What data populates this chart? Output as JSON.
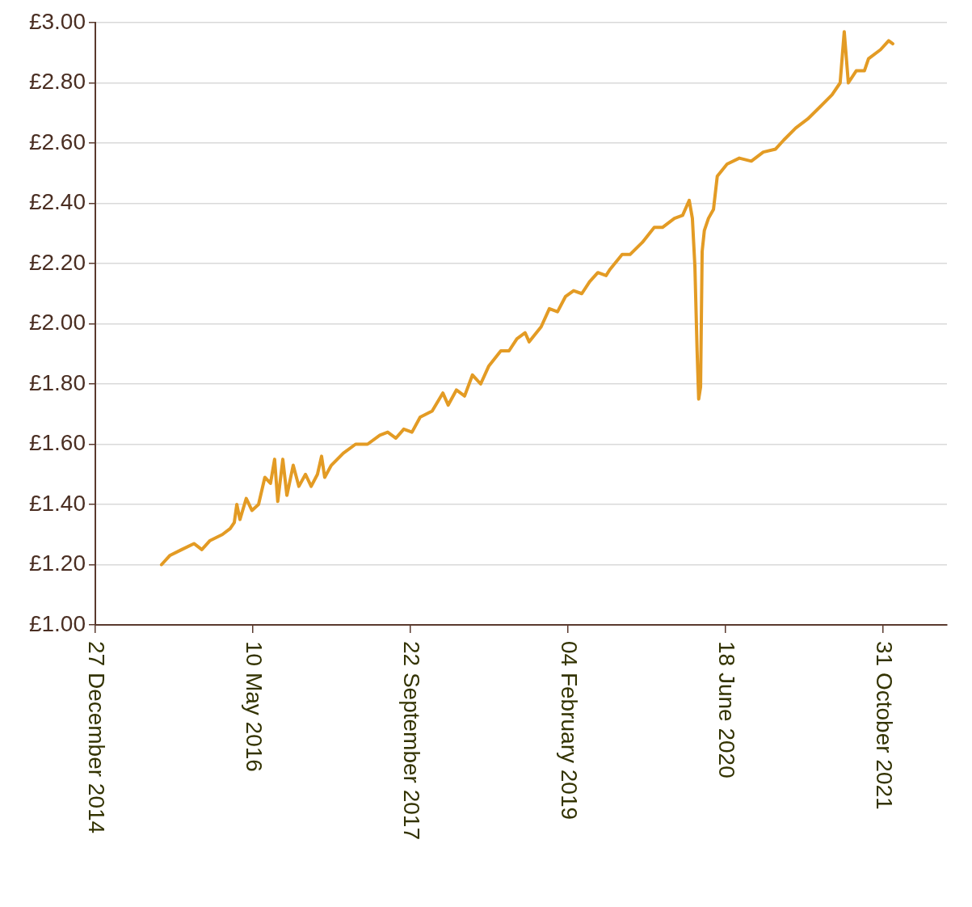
{
  "chart_data": {
    "type": "line",
    "grid": "y",
    "marker": "none",
    "line_style": "solid",
    "legend": false,
    "xlim": [
      "2014-12-27",
      "2022-05-22"
    ],
    "xticks": [
      {
        "value": "2014-12-27",
        "label": "27 December 2014"
      },
      {
        "value": "2016-05-10",
        "label": "10 May 2016"
      },
      {
        "value": "2017-09-22",
        "label": "22 September 2017"
      },
      {
        "value": "2019-02-04",
        "label": "04 February 2019"
      },
      {
        "value": "2020-06-18",
        "label": "18 June 2020"
      },
      {
        "value": "2021-10-31",
        "label": "31 October 2021"
      }
    ],
    "ylim": [
      1,
      3
    ],
    "yticks": [
      {
        "value": 1,
        "label": "£1.00"
      },
      {
        "value": 1.2,
        "label": "£1.20"
      },
      {
        "value": 1.4,
        "label": "£1.40"
      },
      {
        "value": 1.6,
        "label": "£1.60"
      },
      {
        "value": 1.8,
        "label": "£1.80"
      },
      {
        "value": 2,
        "label": "£2.00"
      },
      {
        "value": 2.2,
        "label": "£2.20"
      },
      {
        "value": 2.4,
        "label": "£2.40"
      },
      {
        "value": 2.6,
        "label": "£2.60"
      },
      {
        "value": 2.8,
        "label": "£2.80"
      },
      {
        "value": 3,
        "label": "£3.00"
      }
    ],
    "x": [
      "2015-07-25",
      "2015-08-20",
      "2015-09-27",
      "2015-11-05",
      "2015-11-30",
      "2015-12-26",
      "2016-02-03",
      "2016-02-28",
      "2016-03-12",
      "2016-03-20",
      "2016-03-30",
      "2016-04-19",
      "2016-05-07",
      "2016-05-28",
      "2016-06-17",
      "2016-07-05",
      "2016-07-18",
      "2016-07-28",
      "2016-08-13",
      "2016-08-26",
      "2016-09-15",
      "2016-10-03",
      "2016-10-24",
      "2016-11-11",
      "2016-12-01",
      "2016-12-14",
      "2016-12-24",
      "2017-01-14",
      "2017-02-21",
      "2017-04-01",
      "2017-05-09",
      "2017-06-17",
      "2017-07-12",
      "2017-08-07",
      "2017-09-01",
      "2017-09-27",
      "2017-10-23",
      "2017-11-30",
      "2018-01-03",
      "2018-01-20",
      "2018-02-15",
      "2018-03-13",
      "2018-04-07",
      "2018-05-03",
      "2018-05-29",
      "2018-07-06",
      "2018-08-01",
      "2018-08-26",
      "2018-09-21",
      "2018-10-04",
      "2018-11-11",
      "2018-12-07",
      "2019-01-02",
      "2019-01-27",
      "2019-02-22",
      "2019-03-20",
      "2019-04-14",
      "2019-05-10",
      "2019-06-05",
      "2019-06-17",
      "2019-07-26",
      "2019-08-20",
      "2019-09-28",
      "2019-11-05",
      "2019-12-01",
      "2020-01-08",
      "2020-02-03",
      "2020-02-24",
      "2020-03-05",
      "2020-03-13",
      "2020-03-20",
      "2020-03-25",
      "2020-03-31",
      "2020-04-05",
      "2020-04-12",
      "2020-04-25",
      "2020-05-11",
      "2020-05-23",
      "2020-06-23",
      "2020-08-01",
      "2020-09-08",
      "2020-10-16",
      "2020-11-24",
      "2020-12-20",
      "2021-01-27",
      "2021-03-06",
      "2021-04-14",
      "2021-05-22",
      "2021-06-17",
      "2021-06-30",
      "2021-07-13",
      "2021-08-07",
      "2021-09-02",
      "2021-09-15",
      "2021-10-23",
      "2021-11-18",
      "2021-12-01"
    ],
    "series": [
      {
        "color": "#e39b24",
        "values": [
          1.2,
          1.23,
          1.25,
          1.27,
          1.25,
          1.28,
          1.3,
          1.32,
          1.34,
          1.4,
          1.35,
          1.42,
          1.38,
          1.4,
          1.49,
          1.47,
          1.55,
          1.41,
          1.55,
          1.43,
          1.53,
          1.46,
          1.5,
          1.46,
          1.5,
          1.56,
          1.49,
          1.53,
          1.57,
          1.6,
          1.6,
          1.63,
          1.64,
          1.62,
          1.65,
          1.64,
          1.69,
          1.71,
          1.77,
          1.73,
          1.78,
          1.76,
          1.83,
          1.8,
          1.86,
          1.91,
          1.91,
          1.95,
          1.97,
          1.94,
          1.99,
          2.05,
          2.04,
          2.09,
          2.11,
          2.1,
          2.14,
          2.17,
          2.16,
          2.18,
          2.23,
          2.23,
          2.27,
          2.32,
          2.32,
          2.35,
          2.36,
          2.41,
          2.35,
          2.19,
          1.91,
          1.75,
          1.79,
          2.24,
          2.31,
          2.35,
          2.38,
          2.49,
          2.53,
          2.55,
          2.54,
          2.57,
          2.58,
          2.61,
          2.65,
          2.68,
          2.72,
          2.76,
          2.8,
          2.97,
          2.8,
          2.84,
          2.84,
          2.88,
          2.91,
          2.94,
          2.93
        ]
      }
    ]
  }
}
